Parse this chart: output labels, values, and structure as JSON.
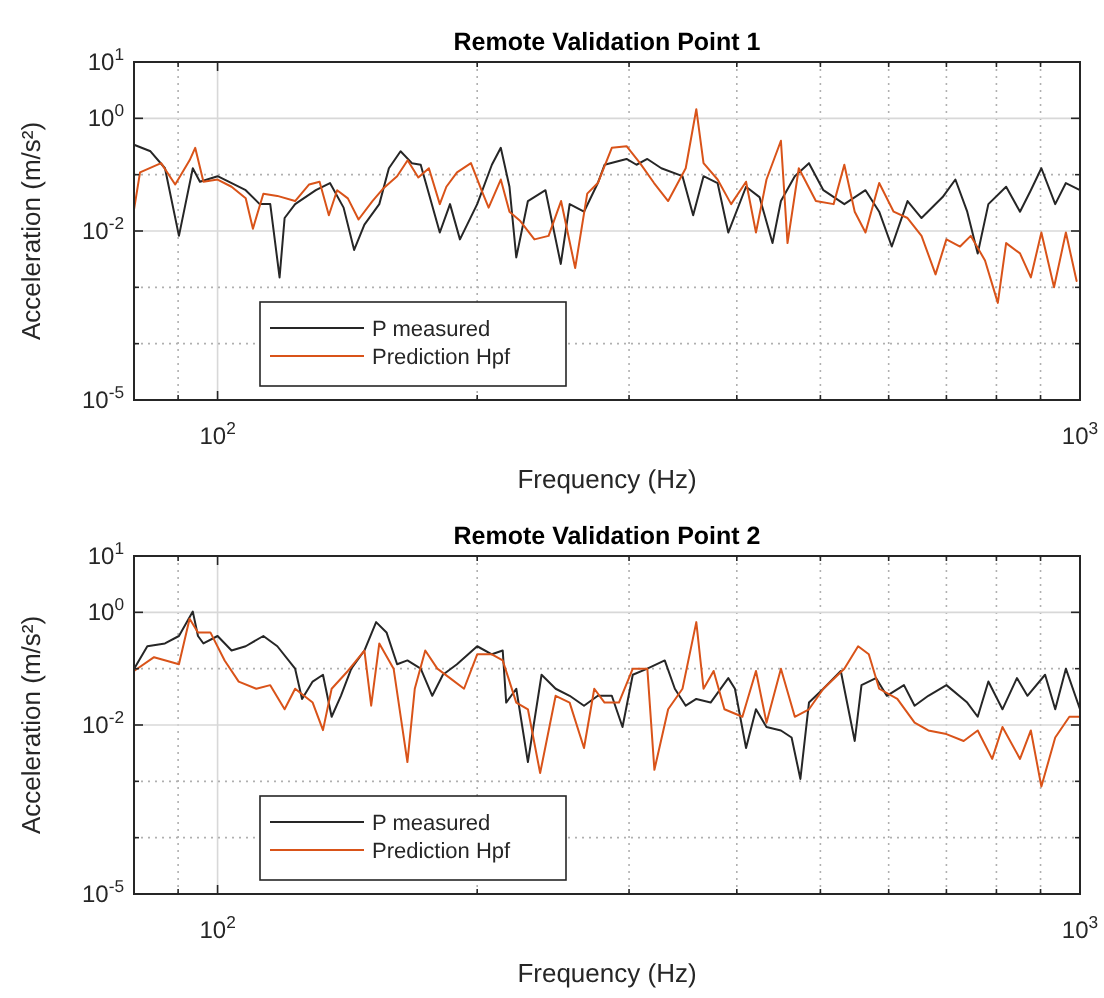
{
  "chart_data": [
    {
      "type": "line",
      "title": "Remote Validation Point 1",
      "xlabel": "Frequency (Hz)",
      "ylabel": "Acceleration (m/s²)",
      "log": "xy",
      "grid": true,
      "legend": "bottom left",
      "xlim": [
        80,
        1000
      ],
      "ylim": [
        1e-05,
        10
      ],
      "xticks": [
        {
          "value": 90,
          "label": null
        },
        {
          "value": 100,
          "label": "10$^{2}$"
        },
        {
          "value": 200,
          "label": null
        },
        {
          "value": 300,
          "label": null
        },
        {
          "value": 400,
          "label": null
        },
        {
          "value": 500,
          "label": null
        },
        {
          "value": 600,
          "label": null
        },
        {
          "value": 700,
          "label": null
        },
        {
          "value": 800,
          "label": null
        },
        {
          "value": 900,
          "label": null
        },
        {
          "value": 1000,
          "label": "10$^{3}$"
        }
      ],
      "yticks": [
        {
          "value": 10,
          "label": "10$^{1}$"
        },
        {
          "value": 1,
          "label": "10$^{0}$"
        },
        {
          "value": 0.1,
          "label": null
        },
        {
          "value": 0.01,
          "label": "10$^{-2}$"
        },
        {
          "value": 0.001,
          "label": null
        },
        {
          "value": 0.0001,
          "label": null
        },
        {
          "value": 1e-05,
          "label": "10$^{-5}$"
        }
      ],
      "series": [
        {
          "name": "P measured",
          "color": "#262626",
          "x": [
            80,
            83.6,
            86.9,
            90.2,
            93.6,
            95.4,
            100,
            107.8,
            111.9,
            115.1,
            118,
            119.6,
            123,
            130,
            135,
            140,
            144,
            148,
            154,
            158,
            163,
            168,
            172,
            181,
            186,
            191,
            200,
            208,
            213,
            218,
            222,
            229,
            240,
            250,
            256,
            266,
            276,
            281,
            298,
            306,
            315,
            327,
            346,
            356,
            366,
            380,
            391,
            410,
            425,
            440,
            450,
            467,
            485,
            504,
            533,
            564,
            585,
            605,
            631,
            655,
            693,
            717,
            740,
            761,
            783,
            821,
            852,
            877,
            902,
            936,
            963,
            1000
          ],
          "values": [
            0.34,
            0.26,
            0.13,
            0.0082,
            0.13,
            0.075,
            0.094,
            0.053,
            0.03,
            0.03,
            0.0015,
            0.017,
            0.03,
            0.053,
            0.071,
            0.026,
            0.0046,
            0.013,
            0.03,
            0.13,
            0.26,
            0.16,
            0.15,
            0.0094,
            0.03,
            0.0071,
            0.03,
            0.15,
            0.3,
            0.061,
            0.0034,
            0.034,
            0.053,
            0.0026,
            0.03,
            0.022,
            0.071,
            0.15,
            0.19,
            0.15,
            0.19,
            0.13,
            0.094,
            0.019,
            0.094,
            0.071,
            0.0094,
            0.061,
            0.04,
            0.0061,
            0.034,
            0.094,
            0.16,
            0.053,
            0.03,
            0.053,
            0.022,
            0.0053,
            0.034,
            0.017,
            0.04,
            0.082,
            0.022,
            0.004,
            0.03,
            0.061,
            0.022,
            0.053,
            0.13,
            0.03,
            0.071,
            0.053
          ]
        },
        {
          "name": "Prediction Hpf",
          "color": "#d95319",
          "x": [
            80,
            81.3,
            86,
            89.3,
            92.8,
            94.2,
            96.3,
            100,
            103.8,
            107.8,
            109.9,
            113,
            117.3,
            123,
            127.7,
            131.3,
            134.6,
            137.6,
            141.6,
            145.7,
            151.2,
            155.5,
            161.5,
            166.1,
            170.9,
            175.8,
            181,
            184.2,
            189.5,
            196.7,
            202.3,
            206.2,
            213,
            218,
            224.4,
            233,
            242,
            250.2,
            259.8,
            268.3,
            276,
            286.5,
            298,
            308.9,
            320.7,
            333,
            349,
            359,
            366,
            380,
            394,
            410,
            421,
            433,
            450,
            458,
            472,
            494,
            518,
            533,
            548,
            564,
            585,
            608,
            631,
            655,
            680,
            700,
            726,
            747,
            776,
            803,
            821,
            852,
            877,
            902,
            933,
            963,
            991
          ],
          "values": [
            0.024,
            0.11,
            0.16,
            0.067,
            0.18,
            0.3,
            0.075,
            0.082,
            0.061,
            0.038,
            0.011,
            0.046,
            0.042,
            0.034,
            0.067,
            0.075,
            0.019,
            0.053,
            0.038,
            0.016,
            0.034,
            0.056,
            0.094,
            0.18,
            0.089,
            0.13,
            0.03,
            0.061,
            0.11,
            0.16,
            0.053,
            0.026,
            0.082,
            0.022,
            0.015,
            0.0071,
            0.0082,
            0.034,
            0.0022,
            0.046,
            0.071,
            0.3,
            0.32,
            0.16,
            0.071,
            0.034,
            0.13,
            1.45,
            0.16,
            0.082,
            0.03,
            0.075,
            0.0094,
            0.082,
            0.4,
            0.0061,
            0.13,
            0.034,
            0.03,
            0.15,
            0.022,
            0.0094,
            0.071,
            0.022,
            0.017,
            0.0082,
            0.0017,
            0.0071,
            0.0053,
            0.0082,
            0.003,
            0.00053,
            0.0061,
            0.004,
            0.0015,
            0.0094,
            0.001,
            0.0094,
            0.0013
          ]
        }
      ]
    },
    {
      "type": "line",
      "title": "Remote Validation Point 2",
      "xlabel": "Frequency (Hz)",
      "ylabel": "Acceleration (m/s²)",
      "log": "xy",
      "grid": true,
      "legend": "bottom left",
      "xlim": [
        80,
        1000
      ],
      "ylim": [
        1e-05,
        10
      ],
      "xticks": [
        {
          "value": 90,
          "label": null
        },
        {
          "value": 100,
          "label": "10$^{2}$"
        },
        {
          "value": 200,
          "label": null
        },
        {
          "value": 300,
          "label": null
        },
        {
          "value": 400,
          "label": null
        },
        {
          "value": 500,
          "label": null
        },
        {
          "value": 600,
          "label": null
        },
        {
          "value": 700,
          "label": null
        },
        {
          "value": 800,
          "label": null
        },
        {
          "value": 900,
          "label": null
        },
        {
          "value": 1000,
          "label": "10$^{3}$"
        }
      ],
      "yticks": [
        {
          "value": 10,
          "label": "10$^{1}$"
        },
        {
          "value": 1,
          "label": "10$^{0}$"
        },
        {
          "value": 0.1,
          "label": null
        },
        {
          "value": 0.01,
          "label": "10$^{-2}$"
        },
        {
          "value": 0.001,
          "label": null
        },
        {
          "value": 0.0001,
          "label": null
        },
        {
          "value": 1e-05,
          "label": "10$^{-5}$"
        }
      ],
      "series": [
        {
          "name": "P measured",
          "color": "#262626",
          "x": [
            80,
            82.9,
            86.9,
            90.2,
            93.6,
            94.9,
            96.3,
            100,
            103.8,
            107.8,
            113,
            117.3,
            123,
            125.3,
            128.9,
            132.5,
            135.6,
            139,
            142.9,
            148,
            152.7,
            157,
            161.5,
            166,
            172,
            177.4,
            182.5,
            189.5,
            200,
            208,
            214.1,
            216.1,
            222,
            229,
            237.5,
            246.6,
            256,
            266,
            276,
            286.5,
            294.8,
            303,
            315,
            330,
            339,
            349,
            359,
            373,
            391,
            398,
            410,
            421,
            433,
            450,
            463,
            474,
            485,
            504,
            528,
            548,
            558,
            580,
            597,
            625,
            643,
            667,
            700,
            740,
            761,
            783,
            813,
            845,
            869,
            911,
            936,
            963,
            1000
          ],
          "values": [
            0.099,
            0.25,
            0.28,
            0.38,
            1.03,
            0.38,
            0.28,
            0.38,
            0.21,
            0.25,
            0.38,
            0.25,
            0.1,
            0.029,
            0.059,
            0.078,
            0.014,
            0.033,
            0.1,
            0.21,
            0.67,
            0.44,
            0.12,
            0.14,
            0.1,
            0.033,
            0.078,
            0.12,
            0.25,
            0.18,
            0.21,
            0.025,
            0.044,
            0.0022,
            0.078,
            0.044,
            0.033,
            0.022,
            0.033,
            0.033,
            0.0092,
            0.078,
            0.1,
            0.14,
            0.044,
            0.022,
            0.029,
            0.025,
            0.068,
            0.044,
            0.0039,
            0.019,
            0.0092,
            0.008,
            0.006,
            0.0011,
            0.025,
            0.044,
            0.091,
            0.0052,
            0.051,
            0.068,
            0.033,
            0.051,
            0.022,
            0.033,
            0.051,
            0.025,
            0.014,
            0.059,
            0.019,
            0.068,
            0.033,
            0.078,
            0.019,
            0.1,
            0.019
          ]
        },
        {
          "name": "Prediction Hpf",
          "color": "#d95319",
          "x": [
            80,
            84.4,
            90.2,
            92.8,
            94.9,
            98.1,
            101.9,
            105.8,
            110.9,
            115.1,
            119.6,
            123,
            128.9,
            132.5,
            135.6,
            141.6,
            148,
            150.7,
            154,
            160,
            166,
            169.3,
            174.1,
            179.8,
            186,
            193.1,
            200,
            208,
            214.1,
            222,
            229,
            236.6,
            246.6,
            256,
            266,
            273.4,
            281,
            292,
            303,
            315,
            321,
            333,
            346,
            359,
            366,
            376,
            387,
            406,
            421,
            433,
            450,
            467,
            485,
            504,
            533,
            553,
            569,
            585,
            614,
            643,
            667,
            700,
            733,
            761,
            791,
            813,
            852,
            877,
            902,
            936,
            972,
            1000
          ],
          "values": [
            0.091,
            0.16,
            0.12,
            0.77,
            0.44,
            0.44,
            0.14,
            0.059,
            0.044,
            0.051,
            0.019,
            0.044,
            0.025,
            0.0081,
            0.044,
            0.091,
            0.21,
            0.022,
            0.28,
            0.1,
            0.0022,
            0.044,
            0.21,
            0.1,
            0.068,
            0.044,
            0.18,
            0.18,
            0.14,
            0.025,
            0.019,
            0.0014,
            0.033,
            0.025,
            0.0039,
            0.044,
            0.025,
            0.025,
            0.1,
            0.1,
            0.0016,
            0.019,
            0.044,
            0.67,
            0.044,
            0.091,
            0.019,
            0.014,
            0.091,
            0.011,
            0.1,
            0.014,
            0.019,
            0.044,
            0.1,
            0.25,
            0.18,
            0.044,
            0.029,
            0.011,
            0.008,
            0.0069,
            0.0052,
            0.008,
            0.0025,
            0.0092,
            0.0025,
            0.008,
            0.00081,
            0.006,
            0.014,
            0.014
          ]
        }
      ]
    }
  ]
}
